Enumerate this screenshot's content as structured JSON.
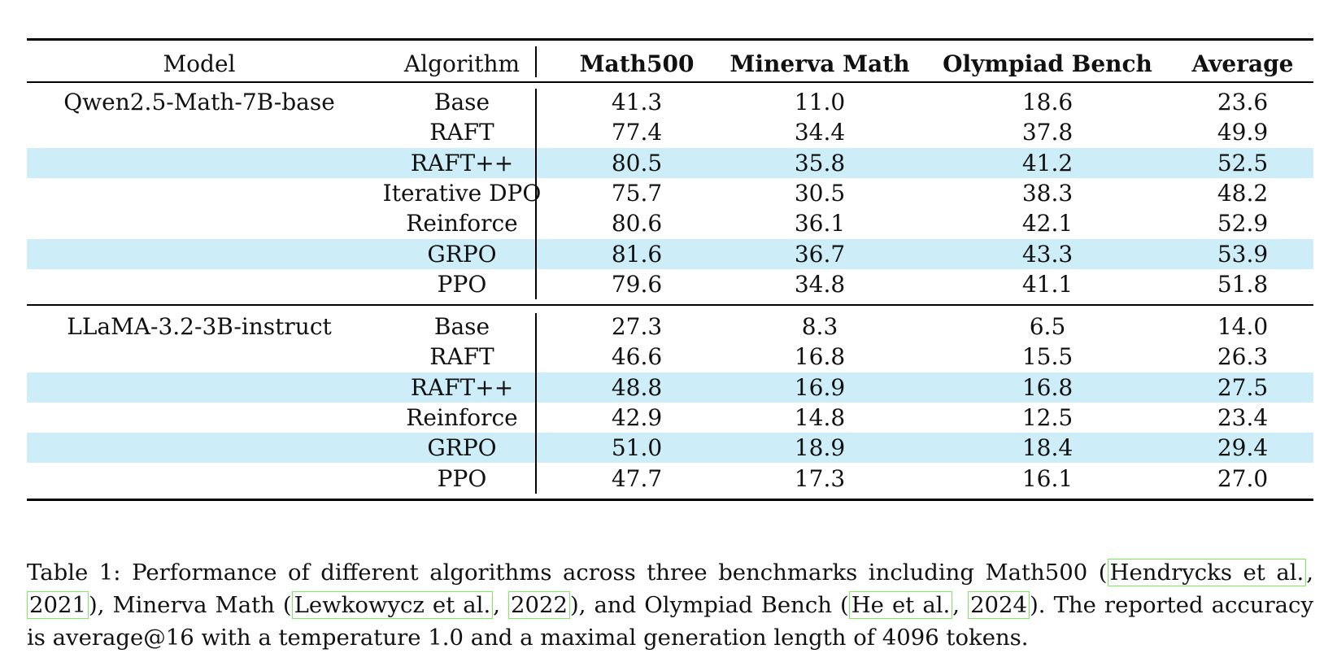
{
  "table": {
    "headers": {
      "model": "Model",
      "algorithm": "Algorithm",
      "math500": "Math500",
      "minerva": "Minerva Math",
      "olympiad": "Olympiad Bench",
      "average": "Average"
    },
    "groups": [
      {
        "model": "Qwen2.5-Math-7B-base",
        "rows": [
          {
            "algorithm": "Base",
            "math500": "41.3",
            "minerva": "11.0",
            "olympiad": "18.6",
            "average": "23.6",
            "highlight": false
          },
          {
            "algorithm": "RAFT",
            "math500": "77.4",
            "minerva": "34.4",
            "olympiad": "37.8",
            "average": "49.9",
            "highlight": false
          },
          {
            "algorithm": "RAFT++",
            "math500": "80.5",
            "minerva": "35.8",
            "olympiad": "41.2",
            "average": "52.5",
            "highlight": true
          },
          {
            "algorithm": "Iterative DPO",
            "math500": "75.7",
            "minerva": "30.5",
            "olympiad": "38.3",
            "average": "48.2",
            "highlight": false
          },
          {
            "algorithm": "Reinforce",
            "math500": "80.6",
            "minerva": "36.1",
            "olympiad": "42.1",
            "average": "52.9",
            "highlight": false
          },
          {
            "algorithm": "GRPO",
            "math500": "81.6",
            "minerva": "36.7",
            "olympiad": "43.3",
            "average": "53.9",
            "highlight": true
          },
          {
            "algorithm": "PPO",
            "math500": "79.6",
            "minerva": "34.8",
            "olympiad": "41.1",
            "average": "51.8",
            "highlight": false
          }
        ]
      },
      {
        "model": "LLaMA-3.2-3B-instruct",
        "rows": [
          {
            "algorithm": "Base",
            "math500": "27.3",
            "minerva": "8.3",
            "olympiad": "6.5",
            "average": "14.0",
            "highlight": false
          },
          {
            "algorithm": "RAFT",
            "math500": "46.6",
            "minerva": "16.8",
            "olympiad": "15.5",
            "average": "26.3",
            "highlight": false
          },
          {
            "algorithm": "RAFT++",
            "math500": "48.8",
            "minerva": "16.9",
            "olympiad": "16.8",
            "average": "27.5",
            "highlight": true
          },
          {
            "algorithm": "Reinforce",
            "math500": "42.9",
            "minerva": "14.8",
            "olympiad": "12.5",
            "average": "23.4",
            "highlight": false
          },
          {
            "algorithm": "GRPO",
            "math500": "51.0",
            "minerva": "18.9",
            "olympiad": "18.4",
            "average": "29.4",
            "highlight": true
          },
          {
            "algorithm": "PPO",
            "math500": "47.7",
            "minerva": "17.3",
            "olympiad": "16.1",
            "average": "27.0",
            "highlight": false
          }
        ]
      }
    ],
    "highlight_color": "#cdeef9"
  },
  "caption": {
    "t1": "Table 1: Performance of different algorithms across three benchmarks including Math500 (",
    "cite1_author": "Hendrycks et al.",
    "t2": ", ",
    "cite1_year": "2021",
    "t3": "), Minerva Math (",
    "cite2_author": "Lewkowycz et al.",
    "t4": ", ",
    "cite2_year": "2022",
    "t5": "), and Olympiad Bench (",
    "cite3_author": "He et al.",
    "t6": ", ",
    "cite3_year": "2024",
    "t7": "). The reported accuracy is average@16 with a temperature 1.0 and a maximal generation length of 4096 tokens."
  }
}
